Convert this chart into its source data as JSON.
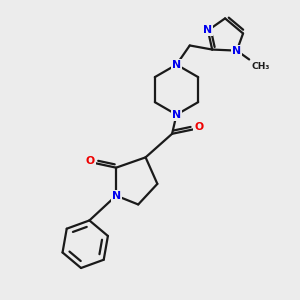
{
  "bg_color": "#ececec",
  "bond_color": "#1a1a1a",
  "N_color": "#0000ee",
  "O_color": "#ee0000",
  "font_size": 7.8,
  "lw": 1.6,
  "figsize": [
    3.0,
    3.0
  ],
  "dpi": 100,
  "xlim": [
    0,
    10
  ],
  "ylim": [
    0,
    10
  ]
}
